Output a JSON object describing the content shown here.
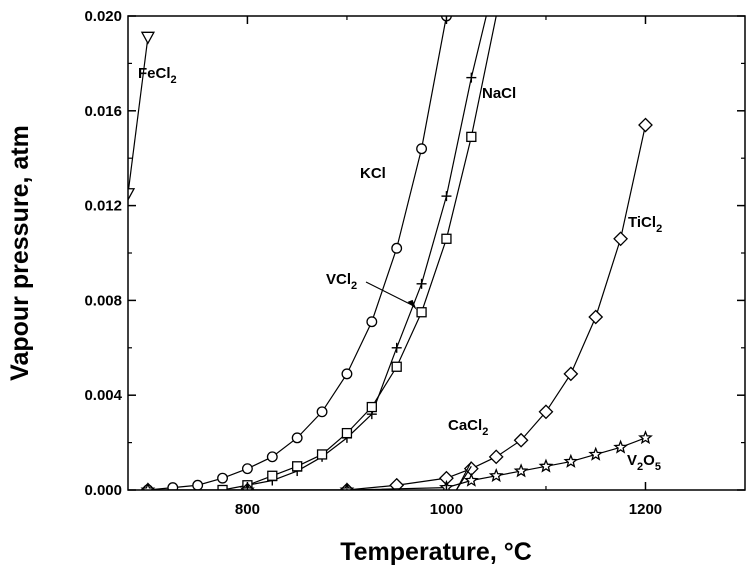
{
  "chart_data": {
    "type": "line",
    "xlabel": "Temperature, °C",
    "ylabel": "Vapour pressure, atm",
    "xlim": [
      680,
      1300
    ],
    "ylim": [
      0,
      0.02
    ],
    "x_ticks": [
      "800",
      "1000",
      "1200"
    ],
    "y_ticks": [
      "0.000",
      "0.004",
      "0.008",
      "0.012",
      "0.016",
      "0.020"
    ],
    "grid": false,
    "series": [
      {
        "name": "FeCl2",
        "marker": "triangle-down",
        "x": [
          680,
          700
        ],
        "y": [
          0.0125,
          0.0191
        ]
      },
      {
        "name": "KCl",
        "marker": "circle",
        "x": [
          700,
          725,
          750,
          775,
          800,
          825,
          850,
          875,
          900,
          925,
          950,
          975,
          1000
        ],
        "y": [
          0.0,
          0.0001,
          0.0002,
          0.0005,
          0.0009,
          0.0014,
          0.0022,
          0.0033,
          0.0049,
          0.0071,
          0.0102,
          0.0144,
          0.02
        ]
      },
      {
        "name": "NaCl",
        "marker": "plus",
        "x": [
          800,
          825,
          850,
          875,
          900,
          925,
          950,
          975,
          1000,
          1025,
          1040
        ],
        "y": [
          0.0002,
          0.0004,
          0.0008,
          0.0014,
          0.0022,
          0.0032,
          0.006,
          0.0087,
          0.0124,
          0.0174,
          0.02
        ]
      },
      {
        "name": "VCl2",
        "marker": "square",
        "x": [
          775,
          800,
          825,
          850,
          875,
          900,
          925,
          950,
          975,
          1000,
          1025,
          1050
        ],
        "y": [
          0.0,
          0.0002,
          0.0006,
          0.001,
          0.0015,
          0.0024,
          0.0035,
          0.0052,
          0.0075,
          0.0106,
          0.0149,
          0.02
        ]
      },
      {
        "name": "TiCl2",
        "marker": "diamond",
        "x": [
          700,
          800,
          900,
          950,
          1000,
          1025,
          1050,
          1075,
          1100,
          1125,
          1150,
          1175,
          1200
        ],
        "y": [
          0.0,
          0.0,
          0.0,
          0.0002,
          0.0005,
          0.0009,
          0.0014,
          0.0021,
          0.0033,
          0.0049,
          0.0073,
          0.0106,
          0.0154
        ]
      },
      {
        "name": "CaCl2",
        "marker": "none",
        "x": [
          1010,
          1025
        ],
        "y": [
          0.0,
          0.001
        ]
      },
      {
        "name": "V2O5",
        "marker": "star",
        "x": [
          700,
          800,
          900,
          1000,
          1025,
          1050,
          1075,
          1100,
          1125,
          1150,
          1175,
          1200
        ],
        "y": [
          0.0,
          0.0,
          0.0,
          0.0001,
          0.0004,
          0.0006,
          0.0008,
          0.001,
          0.0012,
          0.0015,
          0.0018,
          0.0022
        ]
      }
    ],
    "annotations": [
      {
        "text": "FeCl",
        "sub": "2"
      },
      {
        "text": "KCl",
        "sub": ""
      },
      {
        "text": "NaCl",
        "sub": ""
      },
      {
        "text": "VCl",
        "sub": "2"
      },
      {
        "text": "TiCl",
        "sub": "2"
      },
      {
        "text": "CaCl",
        "sub": "2"
      },
      {
        "text": "V",
        "sub": "2",
        "text2": "O",
        "sub2": "5"
      }
    ]
  }
}
